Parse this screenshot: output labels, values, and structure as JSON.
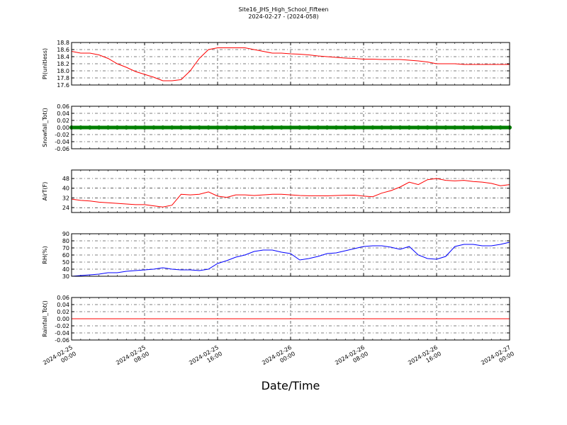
{
  "chart_data": {
    "type": "line",
    "title": "Site16_JHS_High_School_Fifteen",
    "subtitle": "2024-02-27 - (2024-058)",
    "xlabel": "Date/Time",
    "xlim": [
      "2024-02-25 00:00",
      "2024-02-27 00:00"
    ],
    "xticks": [
      "2024-02-25 00:00",
      "2024-02-25 08:00",
      "2024-02-25 16:00",
      "2024-02-26 00:00",
      "2024-02-26 08:00",
      "2024-02-26 16:00",
      "2024-02-27 00:00"
    ],
    "grid": true,
    "x": [
      "2024-02-25 00:00",
      "2024-02-25 01:00",
      "2024-02-25 02:00",
      "2024-02-25 03:00",
      "2024-02-25 04:00",
      "2024-02-25 05:00",
      "2024-02-25 06:00",
      "2024-02-25 07:00",
      "2024-02-25 08:00",
      "2024-02-25 09:00",
      "2024-02-25 10:00",
      "2024-02-25 11:00",
      "2024-02-25 12:00",
      "2024-02-25 13:00",
      "2024-02-25 14:00",
      "2024-02-25 15:00",
      "2024-02-25 16:00",
      "2024-02-25 17:00",
      "2024-02-25 18:00",
      "2024-02-25 19:00",
      "2024-02-25 20:00",
      "2024-02-25 21:00",
      "2024-02-25 22:00",
      "2024-02-25 23:00",
      "2024-02-26 00:00",
      "2024-02-26 01:00",
      "2024-02-26 02:00",
      "2024-02-26 03:00",
      "2024-02-26 04:00",
      "2024-02-26 05:00",
      "2024-02-26 06:00",
      "2024-02-26 07:00",
      "2024-02-26 08:00",
      "2024-02-26 09:00",
      "2024-02-26 10:00",
      "2024-02-26 11:00",
      "2024-02-26 12:00",
      "2024-02-26 13:00",
      "2024-02-26 14:00",
      "2024-02-26 15:00",
      "2024-02-26 16:00",
      "2024-02-26 17:00",
      "2024-02-26 18:00",
      "2024-02-26 19:00",
      "2024-02-26 20:00",
      "2024-02-26 21:00",
      "2024-02-26 22:00",
      "2024-02-26 23:00",
      "2024-02-27 00:00"
    ],
    "panels": [
      {
        "ylabel": "Pl(unitless)",
        "ylim": [
          17.6,
          18.8
        ],
        "yticks": [
          17.6,
          17.8,
          {
            "value": 18,
            "label": "18.0"
          },
          18.2,
          18.4,
          18.6,
          18.8
        ],
        "series": [
          {
            "color": "#ff0000",
            "style": "line",
            "values": [
              18.55,
              18.5,
              18.5,
              18.45,
              18.35,
              18.2,
              18.1,
              17.98,
              17.9,
              17.82,
              17.72,
              17.72,
              17.75,
              18.0,
              18.35,
              18.6,
              18.65,
              18.65,
              18.65,
              18.65,
              18.6,
              18.55,
              18.5,
              18.5,
              18.48,
              18.47,
              18.45,
              18.42,
              18.4,
              18.38,
              18.36,
              18.35,
              18.33,
              18.33,
              18.32,
              18.32,
              18.32,
              18.3,
              18.28,
              18.25,
              18.2,
              18.2,
              18.2,
              18.18,
              18.18,
              18.18,
              18.18,
              18.18,
              18.18
            ]
          }
        ]
      },
      {
        "ylabel": "Snowfall_Tot()",
        "ylim": [
          -0.06,
          0.06
        ],
        "yticks": [
          -0.06,
          -0.04,
          -0.02,
          {
            "value": 0,
            "label": "0.00"
          },
          0.02,
          0.04,
          0.06
        ],
        "series": [
          {
            "color": "#008000",
            "style": "marker",
            "values": [
              0,
              0,
              0,
              0,
              0,
              0,
              0,
              0,
              0,
              0,
              0,
              0,
              0,
              0,
              0,
              0,
              0,
              0,
              0,
              0,
              0,
              0,
              0,
              0,
              0,
              0,
              0,
              0,
              0,
              0,
              0,
              0,
              0,
              0,
              0,
              0,
              0,
              0,
              0,
              0,
              0,
              0,
              0,
              0,
              0,
              0,
              0,
              0,
              0
            ]
          }
        ]
      },
      {
        "ylabel": "AirT(F)",
        "ylim": [
          20,
          55
        ],
        "yticks": [
          24,
          32,
          40,
          48
        ],
        "series": [
          {
            "color": "#ff0000",
            "style": "line",
            "values": [
              31,
              30,
              29.5,
              28.5,
              28,
              27.5,
              27,
              26.5,
              26.5,
              25.5,
              24.5,
              26,
              35,
              34.5,
              35,
              37,
              33.5,
              32.5,
              34.5,
              34.5,
              34,
              34.5,
              35,
              35,
              34.5,
              34,
              33.8,
              33.8,
              33.7,
              34,
              34.2,
              34.3,
              33.5,
              33,
              36,
              38,
              41,
              45,
              43,
              47,
              48,
              46.5,
              46,
              46.5,
              45.5,
              45,
              44,
              42,
              43
            ]
          }
        ]
      },
      {
        "ylabel": "RH(%)",
        "ylim": [
          30,
          90
        ],
        "yticks": [
          30,
          40,
          50,
          60,
          70,
          80,
          90
        ],
        "series": [
          {
            "color": "#0000ff",
            "style": "line",
            "values": [
              30,
              31,
              32,
              33,
              35,
              35,
              37,
              38,
              39,
              40,
              42,
              40,
              39,
              39,
              38,
              40,
              48,
              52,
              57,
              60,
              65,
              67,
              67,
              64,
              62,
              53,
              55,
              58,
              62,
              63,
              66,
              69,
              72,
              73,
              73,
              71,
              68,
              72,
              60,
              55,
              54,
              58,
              72,
              75,
              75,
              73,
              73,
              75,
              78
            ]
          }
        ]
      },
      {
        "ylabel": "Rainfall_Tot()",
        "ylim": [
          -0.06,
          0.06
        ],
        "yticks": [
          -0.06,
          -0.04,
          -0.02,
          {
            "value": 0,
            "label": "0.00"
          },
          0.02,
          0.04,
          0.06
        ],
        "series": [
          {
            "color": "#ff0000",
            "style": "line",
            "values": [
              0,
              0,
              0,
              0,
              0,
              0,
              0,
              0,
              0,
              0,
              0,
              0,
              0,
              0,
              0,
              0,
              0,
              0,
              0,
              0,
              0,
              0,
              0,
              0,
              0,
              0,
              0,
              0,
              0,
              0,
              0,
              0,
              0,
              0,
              0,
              0,
              0,
              0,
              0,
              0,
              0,
              0,
              0,
              0,
              0,
              0,
              0,
              0,
              0
            ]
          }
        ]
      }
    ]
  }
}
